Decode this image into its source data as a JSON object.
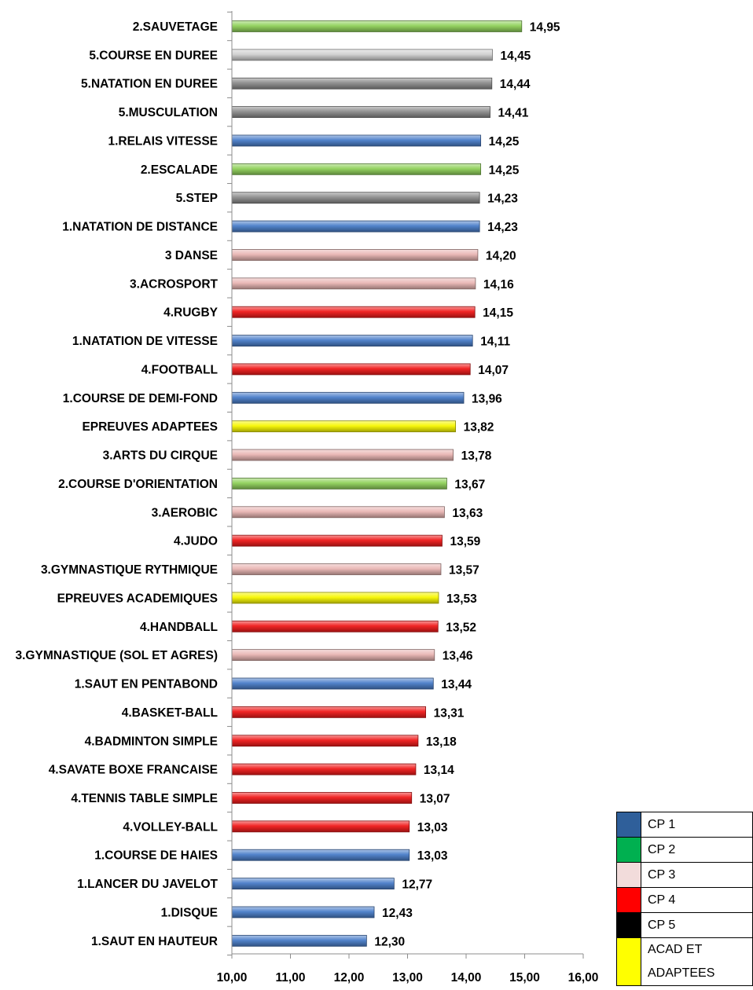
{
  "chart_data": {
    "type": "bar",
    "orientation": "horizontal",
    "categories": [
      "2.SAUVETAGE",
      "5.COURSE EN DUREE",
      "5.NATATION EN DUREE",
      "5.MUSCULATION",
      "1.RELAIS VITESSE",
      "2.ESCALADE",
      "5.STEP",
      "1.NATATION DE DISTANCE",
      "3 DANSE",
      "3.ACROSPORT",
      "4.RUGBY",
      "1.NATATION DE VITESSE",
      "4.FOOTBALL",
      "1.COURSE DE DEMI-FOND",
      "EPREUVES ADAPTEES",
      "3.ARTS DU CIRQUE",
      "2.COURSE D'ORIENTATION",
      "3.AEROBIC",
      "4.JUDO",
      "3.GYMNASTIQUE RYTHMIQUE",
      "EPREUVES ACADEMIQUES",
      "4.HANDBALL",
      "3.GYMNASTIQUE (SOL ET AGRES)",
      "1.SAUT EN PENTABOND",
      "4.BASKET-BALL",
      "4.BADMINTON SIMPLE",
      "4.SAVATE BOXE FRANCAISE",
      "4.TENNIS TABLE SIMPLE",
      "4.VOLLEY-BALL",
      "1.COURSE DE HAIES",
      "1.LANCER DU JAVELOT",
      "1.DISQUE",
      "1.SAUT EN HAUTEUR"
    ],
    "values": [
      14.95,
      14.45,
      14.44,
      14.41,
      14.25,
      14.25,
      14.23,
      14.23,
      14.2,
      14.16,
      14.15,
      14.11,
      14.07,
      13.96,
      13.82,
      13.78,
      13.67,
      13.63,
      13.59,
      13.57,
      13.53,
      13.52,
      13.46,
      13.44,
      13.31,
      13.18,
      13.14,
      13.07,
      13.03,
      13.03,
      12.77,
      12.43,
      12.3
    ],
    "value_labels": [
      "14,95",
      "14,45",
      "14,44",
      "14,41",
      "14,25",
      "14,25",
      "14,23",
      "14,23",
      "14,20",
      "14,16",
      "14,15",
      "14,11",
      "14,07",
      "13,96",
      "13,82",
      "13,78",
      "13,67",
      "13,63",
      "13,59",
      "13,57",
      "13,53",
      "13,52",
      "13,46",
      "13,44",
      "13,31",
      "13,18",
      "13,14",
      "13,07",
      "13,03",
      "13,03",
      "12,77",
      "12,43",
      "12,30"
    ],
    "groups": [
      "CP 2",
      "CP 5 light",
      "CP 5",
      "CP 5",
      "CP 1",
      "CP 2",
      "CP 5",
      "CP 1",
      "CP 3",
      "CP 3",
      "CP 4",
      "CP 1",
      "CP 4",
      "CP 1",
      "ACAD ET ADAPTEES",
      "CP 3",
      "CP 2",
      "CP 3",
      "CP 4",
      "CP 3",
      "ACAD ET ADAPTEES",
      "CP 4",
      "CP 3",
      "CP 1",
      "CP 4",
      "CP 4",
      "CP 4",
      "CP 4",
      "CP 4",
      "CP 1",
      "CP 1",
      "CP 1",
      "CP 1"
    ],
    "bar_colors": {
      "CP 1": "#4a7ec9",
      "CP 2": "#8fd15a",
      "CP 3": "#e9b5b3",
      "CP 4": "#f01a1a",
      "CP 5": "#8c8c8c",
      "CP 5 light": "#d0d0d0",
      "ACAD ET ADAPTEES": "#f7f700"
    },
    "xlim": [
      10,
      16
    ],
    "xticks": [
      10,
      11,
      12,
      13,
      14,
      15,
      16
    ],
    "xtick_labels": [
      "10,00",
      "11,00",
      "12,00",
      "13,00",
      "14,00",
      "15,00",
      "16,00"
    ],
    "title": "",
    "xlabel": "",
    "ylabel": "",
    "grid": false,
    "legend_position": "bottom-right"
  },
  "legend": {
    "items": [
      {
        "label": "CP 1",
        "color": "#2f5f9a"
      },
      {
        "label": "CP 2",
        "color": "#00b050"
      },
      {
        "label": "CP 3",
        "color": "#f2dcdb"
      },
      {
        "label": "CP 4",
        "color": "#ff0000"
      },
      {
        "label": "CP 5",
        "color": "#000000"
      }
    ],
    "last_item": {
      "label_line1": "ACAD ET",
      "label_line2": "ADAPTEES",
      "color": "#ffff00"
    }
  }
}
